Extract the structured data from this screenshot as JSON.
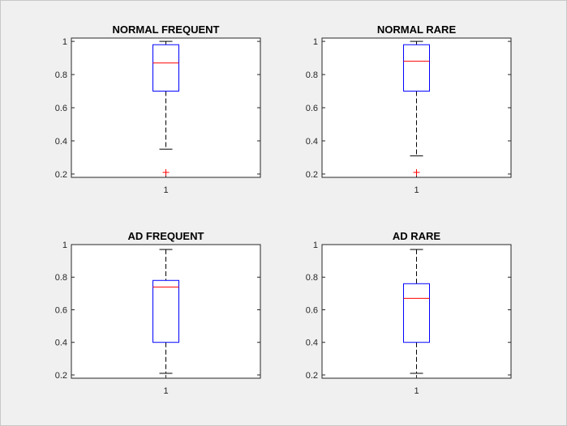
{
  "chart_data": [
    {
      "type": "boxplot",
      "title": "NORMAL FREQUENT",
      "categories": [
        "1"
      ],
      "yticks": [
        "0.2",
        "0.4",
        "0.6",
        "0.8",
        "1"
      ],
      "ylim": [
        0.18,
        1.02
      ],
      "box": {
        "whisker_low": 0.35,
        "q1": 0.7,
        "median": 0.87,
        "q3": 0.98,
        "whisker_high": 1.0
      },
      "outliers": [
        0.21
      ]
    },
    {
      "type": "boxplot",
      "title": "NORMAL RARE",
      "categories": [
        "1"
      ],
      "yticks": [
        "0.2",
        "0.4",
        "0.6",
        "0.8",
        "1"
      ],
      "ylim": [
        0.18,
        1.02
      ],
      "box": {
        "whisker_low": 0.31,
        "q1": 0.7,
        "median": 0.88,
        "q3": 0.98,
        "whisker_high": 1.0
      },
      "outliers": [
        0.21
      ]
    },
    {
      "type": "boxplot",
      "title": "AD FREQUENT",
      "categories": [
        "1"
      ],
      "yticks": [
        "0.2",
        "0.4",
        "0.6",
        "0.8",
        "1"
      ],
      "ylim": [
        0.18,
        1.0
      ],
      "box": {
        "whisker_low": 0.21,
        "q1": 0.4,
        "median": 0.74,
        "q3": 0.78,
        "whisker_high": 0.97
      },
      "outliers": []
    },
    {
      "type": "boxplot",
      "title": "AD RARE",
      "categories": [
        "1"
      ],
      "yticks": [
        "0.2",
        "0.4",
        "0.6",
        "0.8",
        "1"
      ],
      "ylim": [
        0.18,
        1.0
      ],
      "box": {
        "whisker_low": 0.21,
        "q1": 0.4,
        "median": 0.67,
        "q3": 0.76,
        "whisker_high": 0.97
      },
      "outliers": []
    }
  ],
  "colors": {
    "box": "#0000ff",
    "median": "#ff0000",
    "outlier": "#ff0000",
    "whisker": "#000000",
    "axes_bg": "#ffffff",
    "figure_bg": "#f0f0f0"
  }
}
